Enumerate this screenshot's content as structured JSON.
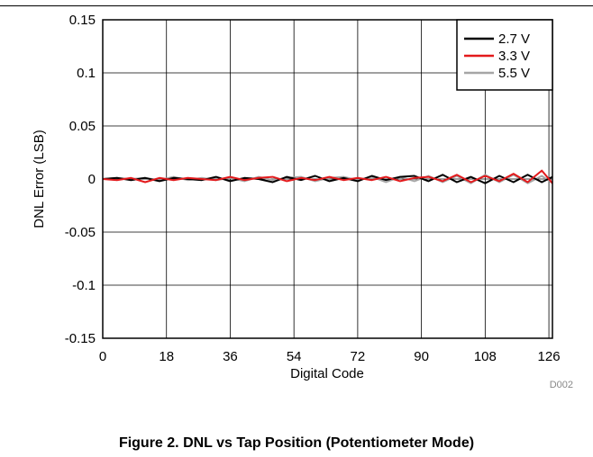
{
  "caption": "Figure 2. DNL vs Tap Position (Potentiometer Mode)",
  "chart_data": {
    "type": "line",
    "title": "",
    "xlabel": "Digital Code",
    "ylabel": "DNL Error (LSB)",
    "xlim": [
      0,
      127
    ],
    "ylim": [
      -0.15,
      0.15
    ],
    "x_ticks": [
      0,
      18,
      36,
      54,
      72,
      90,
      108,
      126
    ],
    "y_ticks": [
      0.15,
      0.1,
      0.05,
      0,
      -0.05,
      -0.1,
      -0.15
    ],
    "y_tick_labels": [
      "0.15",
      "0.1",
      "0.05",
      "0",
      "-0.05",
      "-0.1",
      "-0.15"
    ],
    "grid": true,
    "legend_position": "top-right",
    "code_label": "D002",
    "series": [
      {
        "name": "2.7 V",
        "color": "#000000",
        "x": [
          0,
          4,
          8,
          12,
          16,
          20,
          24,
          28,
          32,
          36,
          40,
          44,
          48,
          52,
          56,
          60,
          64,
          68,
          72,
          76,
          80,
          84,
          88,
          92,
          96,
          100,
          104,
          108,
          112,
          116,
          120,
          124,
          127
        ],
        "y": [
          0,
          0.001,
          -0.001,
          0.001,
          -0.002,
          0.001,
          0,
          -0.001,
          0.002,
          -0.002,
          0.001,
          0,
          -0.003,
          0.002,
          -0.001,
          0.003,
          -0.002,
          0.001,
          -0.002,
          0.003,
          -0.001,
          0.002,
          0.003,
          -0.002,
          0.004,
          -0.003,
          0.002,
          -0.004,
          0.003,
          -0.003,
          0.004,
          -0.003,
          0.002
        ]
      },
      {
        "name": "3.3 V",
        "color": "#e31a1c",
        "x": [
          0,
          4,
          8,
          12,
          16,
          20,
          24,
          28,
          32,
          36,
          40,
          44,
          48,
          52,
          56,
          60,
          64,
          68,
          72,
          76,
          80,
          84,
          88,
          92,
          96,
          100,
          104,
          108,
          112,
          116,
          120,
          124,
          127
        ],
        "y": [
          0,
          -0.001,
          0.001,
          -0.003,
          0.001,
          -0.001,
          0.001,
          0,
          -0.001,
          0.002,
          -0.001,
          0.001,
          0.002,
          -0.002,
          0.001,
          -0.001,
          0.002,
          -0.001,
          0.001,
          -0.001,
          0.002,
          -0.002,
          0.001,
          0.002,
          -0.002,
          0.004,
          -0.003,
          0.003,
          -0.002,
          0.005,
          -0.003,
          0.008,
          -0.004
        ]
      },
      {
        "name": "5.5 V",
        "color": "#a6a6a6",
        "x": [
          0,
          4,
          8,
          12,
          16,
          20,
          24,
          28,
          32,
          36,
          40,
          44,
          48,
          52,
          56,
          60,
          64,
          68,
          72,
          76,
          80,
          84,
          88,
          92,
          96,
          100,
          104,
          108,
          112,
          116,
          120,
          124,
          127
        ],
        "y": [
          0,
          0.001,
          0,
          0.001,
          -0.001,
          0.002,
          -0.001,
          0.001,
          -0.001,
          0.001,
          -0.002,
          0.002,
          -0.001,
          0.001,
          0.002,
          -0.002,
          0.001,
          0.002,
          -0.001,
          0.002,
          -0.003,
          0.002,
          -0.002,
          0.003,
          -0.003,
          0.003,
          -0.004,
          0.004,
          -0.003,
          0.004,
          -0.004,
          0.003,
          -0.004
        ]
      }
    ]
  }
}
